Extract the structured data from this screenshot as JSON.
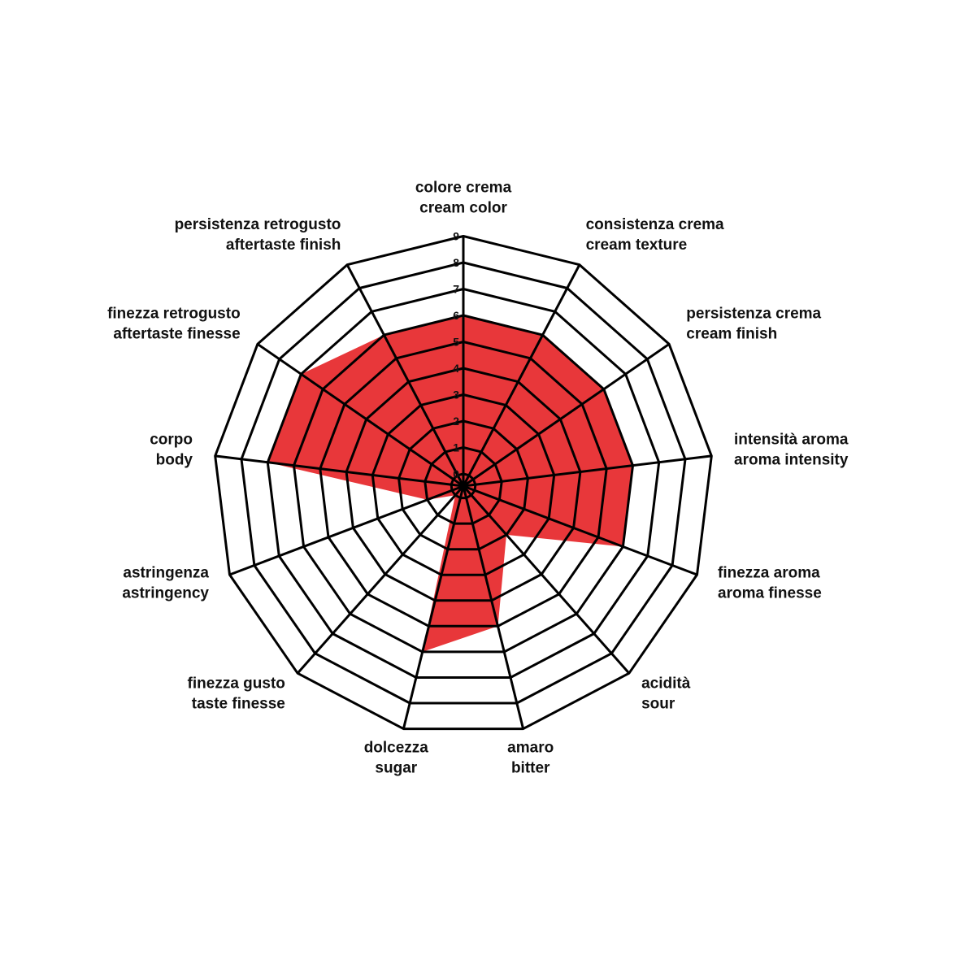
{
  "chart_data": {
    "type": "radar",
    "axes": [
      {
        "label_it": "colore crema",
        "label_en": "cream color"
      },
      {
        "label_it": "consistenza crema",
        "label_en": "cream texture"
      },
      {
        "label_it": "persistenza crema",
        "label_en": "cream finish"
      },
      {
        "label_it": "intensità aroma",
        "label_en": "aroma intensity"
      },
      {
        "label_it": "finezza aroma",
        "label_en": "aroma finesse"
      },
      {
        "label_it": "acidità",
        "label_en": "sour"
      },
      {
        "label_it": "amaro",
        "label_en": "bitter"
      },
      {
        "label_it": "dolcezza",
        "label_en": "sugar"
      },
      {
        "label_it": "finezza gusto",
        "label_en": "taste finesse"
      },
      {
        "label_it": "astringenza",
        "label_en": "astringency"
      },
      {
        "label_it": "corpo",
        "label_en": "body"
      },
      {
        "label_it": "finezza retrogusto",
        "label_en": "aftertaste finesse"
      },
      {
        "label_it": "persistenza retrogusto",
        "label_en": "aftertaste finish"
      }
    ],
    "values": [
      6,
      6,
      6,
      6,
      6,
      2,
      5,
      6,
      0,
      1,
      7,
      7,
      6
    ],
    "range": [
      0,
      9
    ],
    "ticks": [
      "0",
      "1",
      "2",
      "3",
      "4",
      "5",
      "6",
      "7",
      "8",
      "9"
    ],
    "fill_color": "#e8373a",
    "grid_color": "#000000",
    "grid": true,
    "legend": "none"
  }
}
